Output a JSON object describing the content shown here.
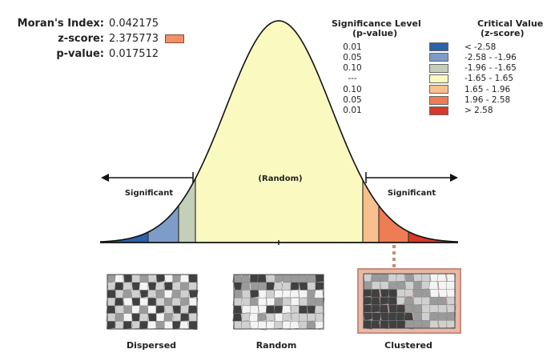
{
  "stats": {
    "morans_label": "Moran's Index:",
    "morans_value": "0.042175",
    "z_label": "z-score:",
    "z_value": "2.375773",
    "z_color": "#f0906b",
    "p_label": "p-value:",
    "p_value": "0.017512"
  },
  "legend": {
    "header_p_line1": "Significance Level",
    "header_p_line2": "(p-value)",
    "header_z_line1": "Critical Value",
    "header_z_line2": "(z-score)",
    "rows": [
      {
        "p": "0.01",
        "z": "< -2.58",
        "color": "#2c62a8"
      },
      {
        "p": "0.05",
        "z": "-2.58 - -1.96",
        "color": "#7e9cc8"
      },
      {
        "p": "0.10",
        "z": "-1.96 - -1.65",
        "color": "#c3cfb8"
      },
      {
        "p": "---",
        "z": "-1.65 - 1.65",
        "color": "#fafac0"
      },
      {
        "p": "0.10",
        "z": "1.65 - 1.96",
        "color": "#f7c08e"
      },
      {
        "p": "0.05",
        "z": "1.96 - 2.58",
        "color": "#ee7d55"
      },
      {
        "p": "0.01",
        "z": "> 2.58",
        "color": "#d8392a"
      }
    ]
  },
  "curve": {
    "random_label": "(Random)",
    "left_label": "Significant",
    "right_label": "Significant"
  },
  "maps": [
    {
      "label": "Dispersed"
    },
    {
      "label": "Random"
    },
    {
      "label": "Clustered"
    }
  ]
}
